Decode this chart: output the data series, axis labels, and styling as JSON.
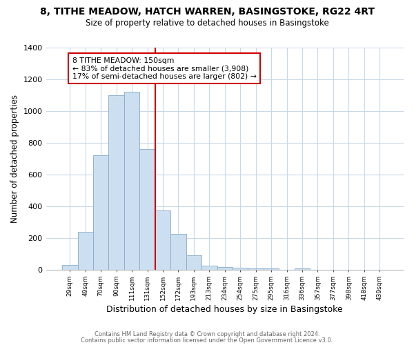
{
  "title1": "8, TITHE MEADOW, HATCH WARREN, BASINGSTOKE, RG22 4RT",
  "title2": "Size of property relative to detached houses in Basingstoke",
  "xlabel": "Distribution of detached houses by size in Basingstoke",
  "ylabel": "Number of detached properties",
  "bin_labels": [
    "29sqm",
    "49sqm",
    "70sqm",
    "90sqm",
    "111sqm",
    "131sqm",
    "152sqm",
    "172sqm",
    "193sqm",
    "213sqm",
    "234sqm",
    "254sqm",
    "275sqm",
    "295sqm",
    "316sqm",
    "336sqm",
    "357sqm",
    "377sqm",
    "398sqm",
    "418sqm",
    "439sqm"
  ],
  "bin_values": [
    30,
    240,
    720,
    1100,
    1120,
    760,
    375,
    228,
    90,
    28,
    18,
    15,
    8,
    8,
    0,
    8,
    0,
    0,
    0,
    0,
    0
  ],
  "bar_color": "#ccdff0",
  "bar_edge_color": "#88aac8",
  "vline_color": "#cc0000",
  "annotation_text": "8 TITHE MEADOW: 150sqm\n← 83% of detached houses are smaller (3,908)\n17% of semi-detached houses are larger (802) →",
  "annotation_box_color": "white",
  "annotation_box_edge": "#cc0000",
  "ylim": [
    0,
    1400
  ],
  "yticks": [
    0,
    200,
    400,
    600,
    800,
    1000,
    1200,
    1400
  ],
  "footer1": "Contains HM Land Registry data © Crown copyright and database right 2024.",
  "footer2": "Contains public sector information licensed under the Open Government Licence v3.0.",
  "background_color": "#ffffff",
  "grid_color": "#c8d8e8"
}
